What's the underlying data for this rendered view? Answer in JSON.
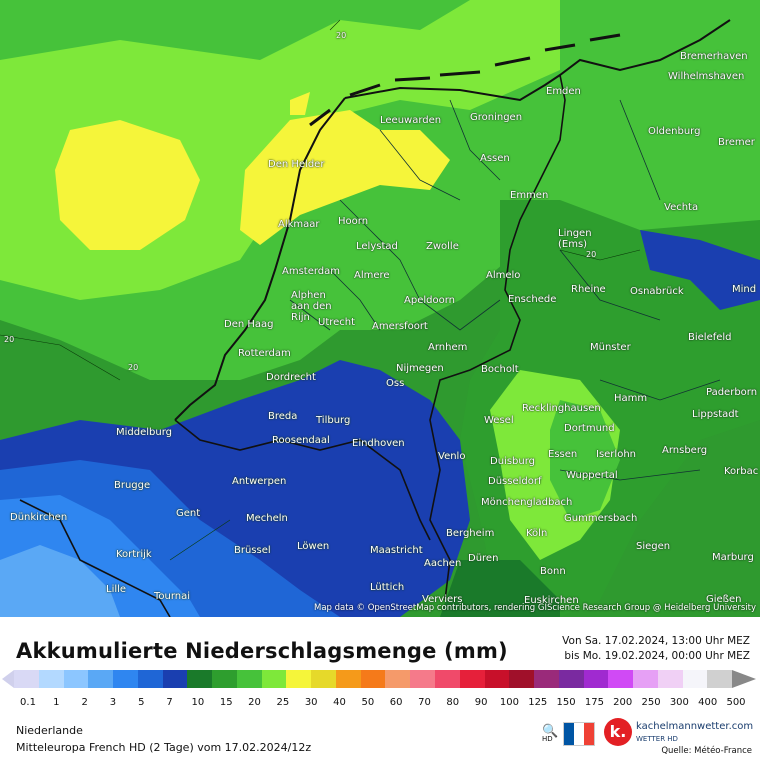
{
  "map": {
    "attribution": "Map data © OpenStreetMap contributors, rendering GIScience Research Group @ Heidelberg University",
    "contour_label": "20",
    "cities": [
      {
        "name": "Bremerhaven"
      },
      {
        "name": "Wilhelmshaven"
      },
      {
        "name": "Emden"
      },
      {
        "name": "Leeuwarden"
      },
      {
        "name": "Groningen"
      },
      {
        "name": "Oldenburg"
      },
      {
        "name": "Bremer"
      },
      {
        "name": "Den Helder"
      },
      {
        "name": "Assen"
      },
      {
        "name": "Emmen"
      },
      {
        "name": "Vechta"
      },
      {
        "name": "Hoorn"
      },
      {
        "name": "Alkmaar"
      },
      {
        "name": "Lingen\n(Ems)"
      },
      {
        "name": "Lelystad"
      },
      {
        "name": "Zwolle"
      },
      {
        "name": "Amsterdam"
      },
      {
        "name": "Almere"
      },
      {
        "name": "Almelo"
      },
      {
        "name": "Rheine"
      },
      {
        "name": "Osnabrück"
      },
      {
        "name": "Mind"
      },
      {
        "name": "Alphen\naan den\nRijn"
      },
      {
        "name": "Apeldoorn"
      },
      {
        "name": "Enschede"
      },
      {
        "name": "Den Haag"
      },
      {
        "name": "Utrecht"
      },
      {
        "name": "Amersfoort"
      },
      {
        "name": "Bielefeld"
      },
      {
        "name": "Rotterdam"
      },
      {
        "name": "Arnhem"
      },
      {
        "name": "Münster"
      },
      {
        "name": "Nijmegen"
      },
      {
        "name": "Dordrecht"
      },
      {
        "name": "Oss"
      },
      {
        "name": "Bocholt"
      },
      {
        "name": "Paderborn"
      },
      {
        "name": "Hamm"
      },
      {
        "name": "Recklinghausen"
      },
      {
        "name": "Lippstadt"
      },
      {
        "name": "Breda"
      },
      {
        "name": "Tilburg"
      },
      {
        "name": "Wesel"
      },
      {
        "name": "Middelburg"
      },
      {
        "name": "Roosendaal"
      },
      {
        "name": "Dortmund"
      },
      {
        "name": "Eindhoven"
      },
      {
        "name": "Iserlohn"
      },
      {
        "name": "Arnsberg"
      },
      {
        "name": "Venlo"
      },
      {
        "name": "Essen"
      },
      {
        "name": "Duisburg"
      },
      {
        "name": "Wuppertal"
      },
      {
        "name": "Korbac"
      },
      {
        "name": "Antwerpen"
      },
      {
        "name": "Brugge"
      },
      {
        "name": "Düsseldorf"
      },
      {
        "name": "Mönchengladbach"
      },
      {
        "name": "Gent"
      },
      {
        "name": "Dünkirchen"
      },
      {
        "name": "Mecheln"
      },
      {
        "name": "Gummersbach"
      },
      {
        "name": "Bergheim"
      },
      {
        "name": "Köln"
      },
      {
        "name": "Kortrijk"
      },
      {
        "name": "Brüssel"
      },
      {
        "name": "Löwen"
      },
      {
        "name": "Maastricht"
      },
      {
        "name": "Siegen"
      },
      {
        "name": "Düren"
      },
      {
        "name": "Marburg"
      },
      {
        "name": "Aachen"
      },
      {
        "name": "Bonn"
      },
      {
        "name": "Lille"
      },
      {
        "name": "Lüttich"
      },
      {
        "name": "Tournai"
      },
      {
        "name": "Verviers"
      },
      {
        "name": "Euskirchen"
      },
      {
        "name": "Gießen"
      }
    ]
  },
  "header": {
    "title": "Akkumulierte Niederschlagsmenge (mm)",
    "period_from": "Von Sa. 17.02.2024, 13:00 Uhr MEZ",
    "period_to": "bis Mo. 19.02.2024, 00:00 Uhr MEZ"
  },
  "legend": {
    "colors": [
      "#d9d9f5",
      "#b3d9ff",
      "#8cc6ff",
      "#5aa8f5",
      "#2f86f0",
      "#1f66d6",
      "#1a3fb0",
      "#1a7a2a",
      "#2e9e2e",
      "#46c23a",
      "#7ee83a",
      "#f5f53a",
      "#e6d92a",
      "#f59a1a",
      "#f57a1a",
      "#f59a6a",
      "#f57a8a",
      "#f04a6a",
      "#e6203a",
      "#c8102a",
      "#a0102a",
      "#9a2a7a",
      "#7a2aa0",
      "#a02ad0",
      "#d04af5",
      "#e6a0f5",
      "#f0d0f5",
      "#f5f5fa",
      "#d0d0d0"
    ],
    "labels": [
      "0.1",
      "1",
      "2",
      "3",
      "5",
      "7",
      "10",
      "15",
      "20",
      "25",
      "30",
      "40",
      "50",
      "60",
      "70",
      "80",
      "90",
      "100",
      "125",
      "150",
      "175",
      "200",
      "250",
      "300",
      "400",
      "500"
    ]
  },
  "footer": {
    "region": "Niederlande",
    "model": "Mitteleuropa French HD (2 Tage) vom 17.02.2024/12z",
    "brand": "kachelmannwetter.com",
    "brand_sub": "WETTER HD",
    "source": "Quelle: Météo-France",
    "hd_label": "HD"
  }
}
